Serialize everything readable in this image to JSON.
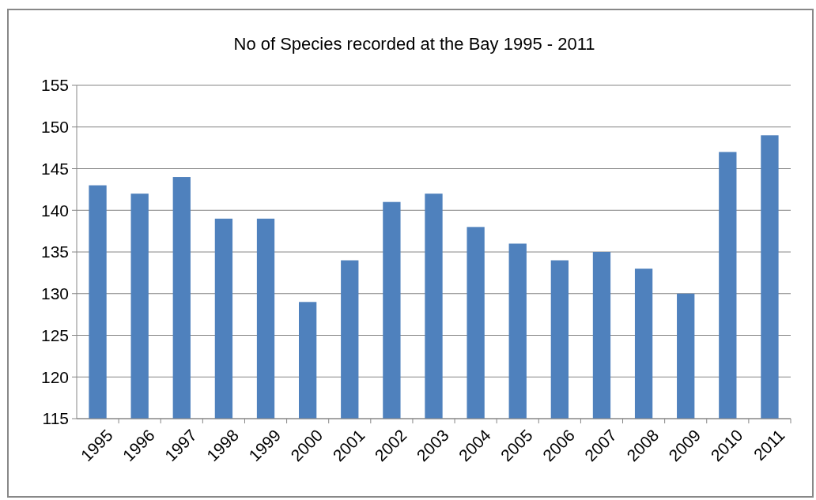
{
  "chart_data": {
    "type": "bar",
    "title": "No of Species recorded at the Bay 1995 - 2011",
    "categories": [
      "1995",
      "1996",
      "1997",
      "1998",
      "1999",
      "2000",
      "2001",
      "2002",
      "2003",
      "2004",
      "2005",
      "2006",
      "2007",
      "2008",
      "2009",
      "2010",
      "2011"
    ],
    "values": [
      143,
      142,
      144,
      139,
      139,
      129,
      134,
      141,
      142,
      138,
      136,
      134,
      135,
      133,
      130,
      147,
      149
    ],
    "color": "#4f81bd",
    "ylim": [
      115,
      155
    ],
    "yticks": [
      115,
      120,
      125,
      130,
      135,
      140,
      145,
      150,
      155
    ],
    "grid": "y"
  }
}
